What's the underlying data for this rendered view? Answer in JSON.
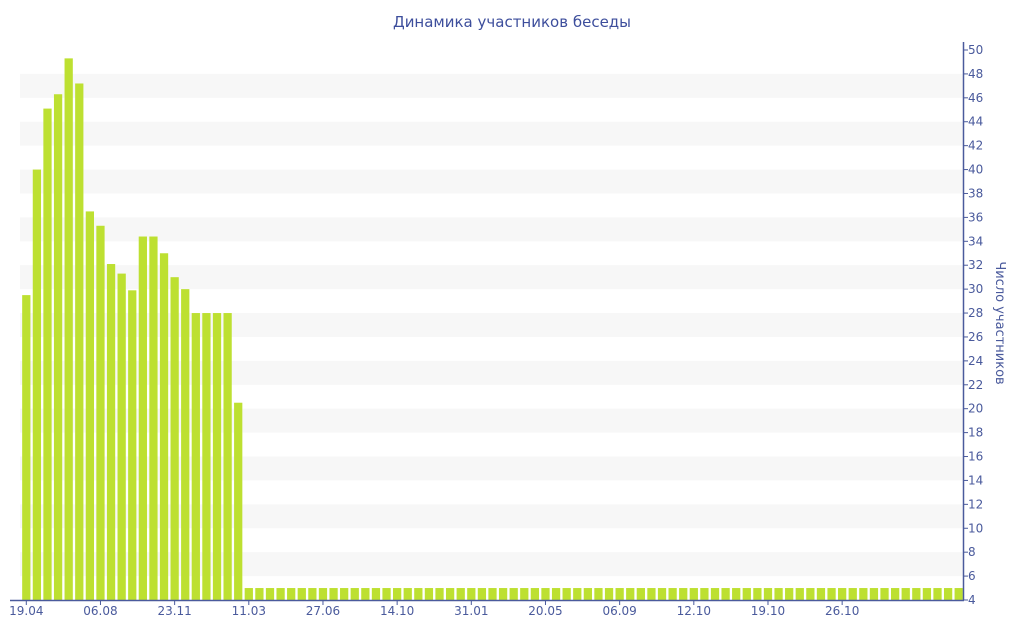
{
  "chart_data": {
    "type": "bar",
    "title": "Динамика участников беседы",
    "ylabel": "Число участников",
    "xlabel": "",
    "ylim": [
      4,
      50
    ],
    "yticks": [
      4,
      6,
      8,
      10,
      12,
      14,
      16,
      18,
      20,
      22,
      24,
      26,
      28,
      30,
      32,
      34,
      36,
      38,
      40,
      42,
      44,
      46,
      48,
      50
    ],
    "y_axis_position": "right",
    "grid": "alternating horizontal bands",
    "bar_color": "#bde031",
    "axis_color": "#4a5a9c",
    "xtick_labels": [
      "19.04",
      "06.08",
      "23.11",
      "11.03",
      "27.06",
      "14.10",
      "31.01",
      "20.05",
      "06.09",
      "12.10",
      "19.10",
      "26.10"
    ],
    "xtick_every": 7,
    "values": [
      29.5,
      40.0,
      45.1,
      46.3,
      49.3,
      47.2,
      36.5,
      35.3,
      32.1,
      31.3,
      29.9,
      34.4,
      34.4,
      33.0,
      31.0,
      30.0,
      28.0,
      28.0,
      28.0,
      28.0,
      20.5,
      5,
      5,
      5,
      5,
      5,
      5,
      5,
      5,
      5,
      5,
      5,
      5,
      5,
      5,
      5,
      5,
      5,
      5,
      5,
      5,
      5,
      5,
      5,
      5,
      5,
      5,
      5,
      5,
      5,
      5,
      5,
      5,
      5,
      5,
      5,
      5,
      5,
      5,
      5,
      5,
      5,
      5,
      5,
      5,
      5,
      5,
      5,
      5,
      5,
      5,
      5,
      5,
      5,
      5,
      5,
      5,
      5,
      5,
      5,
      5,
      5,
      5,
      5,
      5,
      5,
      5,
      5,
      5
    ]
  }
}
